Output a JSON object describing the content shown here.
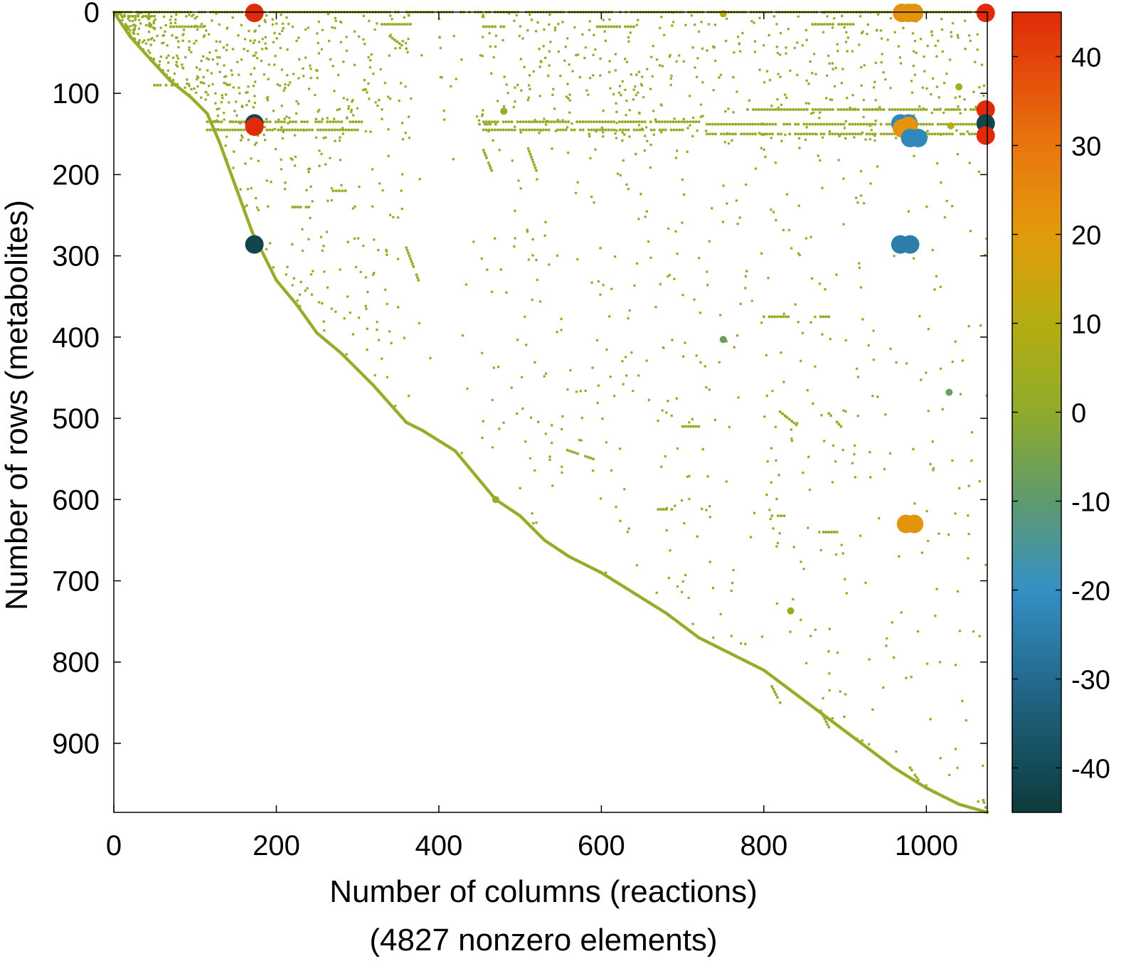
{
  "chart_data": {
    "type": "scatter",
    "title": "",
    "xlabel": "Number of columns (reactions)",
    "xlabel_line2": "(4827 nonzero elements)",
    "ylabel": "Number of rows (metabolites)",
    "xlim": [
      0,
      1075
    ],
    "ylim": [
      985,
      0
    ],
    "x_inverted": false,
    "y_inverted": true,
    "grid": false,
    "xticks": [
      0,
      200,
      400,
      600,
      800,
      1000
    ],
    "yticks": [
      0,
      100,
      200,
      300,
      400,
      500,
      600,
      700,
      800,
      900
    ],
    "colorbar": {
      "range": [
        -45,
        45
      ],
      "ticks": [
        40,
        30,
        20,
        10,
        0,
        -10,
        -20,
        -30,
        -40
      ],
      "stops": [
        {
          "value": -45,
          "color": "#0d3b3b"
        },
        {
          "value": -30,
          "color": "#236a8e"
        },
        {
          "value": -20,
          "color": "#3590c6"
        },
        {
          "value": -10,
          "color": "#5f9a6e"
        },
        {
          "value": 0,
          "color": "#8fab2b"
        },
        {
          "value": 10,
          "color": "#b4ad12"
        },
        {
          "value": 20,
          "color": "#e29b0a"
        },
        {
          "value": 30,
          "color": "#e8760e"
        },
        {
          "value": 45,
          "color": "#e02a08"
        }
      ]
    },
    "nonzero_count": 4827,
    "marker_color_default": "#98ac2a",
    "diagonal_points": [
      [
        0,
        0
      ],
      [
        20,
        30
      ],
      [
        45,
        58
      ],
      [
        70,
        85
      ],
      [
        95,
        105
      ],
      [
        115,
        125
      ],
      [
        130,
        160
      ],
      [
        150,
        215
      ],
      [
        170,
        270
      ],
      [
        185,
        300
      ],
      [
        200,
        330
      ],
      [
        225,
        360
      ],
      [
        250,
        395
      ],
      [
        280,
        420
      ],
      [
        320,
        460
      ],
      [
        360,
        505
      ],
      [
        380,
        515
      ],
      [
        420,
        540
      ],
      [
        470,
        600
      ],
      [
        500,
        620
      ],
      [
        530,
        650
      ],
      [
        560,
        670
      ],
      [
        600,
        690
      ],
      [
        640,
        715
      ],
      [
        680,
        740
      ],
      [
        720,
        770
      ],
      [
        760,
        790
      ],
      [
        800,
        810
      ],
      [
        840,
        840
      ],
      [
        880,
        870
      ],
      [
        920,
        900
      ],
      [
        960,
        930
      ],
      [
        1000,
        955
      ],
      [
        1040,
        975
      ],
      [
        1075,
        985
      ]
    ],
    "segments": [
      {
        "x": [
          0,
          1075
        ],
        "y": [
          0,
          0
        ]
      },
      {
        "x": [
          20,
          50
        ],
        "y": [
          5,
          5
        ]
      },
      {
        "x": [
          70,
          110
        ],
        "y": [
          18,
          18
        ]
      },
      {
        "x": [
          330,
          365
        ],
        "y": [
          15,
          15
        ]
      },
      {
        "x": [
          455,
          480
        ],
        "y": [
          18,
          18
        ]
      },
      {
        "x": [
          595,
          640
        ],
        "y": [
          18,
          18
        ]
      },
      {
        "x": [
          860,
          910
        ],
        "y": [
          15,
          15
        ]
      },
      {
        "x": [
          50,
          75
        ],
        "y": [
          90,
          90
        ]
      },
      {
        "x": [
          115,
          305
        ],
        "y": [
          135,
          135
        ]
      },
      {
        "x": [
          115,
          300
        ],
        "y": [
          145,
          145
        ]
      },
      {
        "x": [
          455,
          720
        ],
        "y": [
          135,
          135
        ]
      },
      {
        "x": [
          450,
          470
        ],
        "y": [
          138,
          138
        ]
      },
      {
        "x": [
          455,
          700
        ],
        "y": [
          145,
          145
        ]
      },
      {
        "x": [
          780,
          1000
        ],
        "y": [
          120,
          120
        ]
      },
      {
        "x": [
          730,
          1060
        ],
        "y": [
          138,
          138
        ]
      },
      {
        "x": [
          730,
          1060
        ],
        "y": [
          150,
          150
        ]
      },
      {
        "x": [
          220,
          240
        ],
        "y": [
          240,
          240
        ]
      },
      {
        "x": [
          270,
          285
        ],
        "y": [
          220,
          220
        ]
      },
      {
        "x": [
          1010,
          1065
        ],
        "y": [
          120,
          120
        ]
      },
      {
        "x": [
          800,
          830
        ],
        "y": [
          375,
          375
        ]
      },
      {
        "x": [
          870,
          880
        ],
        "y": [
          375,
          375
        ]
      },
      {
        "x": [
          810,
          825
        ],
        "y": [
          620,
          620
        ]
      },
      {
        "x": [
          870,
          890
        ],
        "y": [
          640,
          640
        ]
      },
      {
        "x": [
          670,
          690
        ],
        "y": [
          612,
          612
        ]
      },
      {
        "x": [
          700,
          720
        ],
        "y": [
          510,
          510
        ]
      },
      {
        "x": [
          555,
          590
        ],
        "y": [
          538,
          550
        ]
      },
      {
        "x": [
          820,
          840
        ],
        "y": [
          492,
          508
        ]
      },
      {
        "x": [
          880,
          895
        ],
        "y": [
          494,
          510
        ]
      },
      {
        "x": [
          360,
          375
        ],
        "y": [
          290,
          330
        ]
      },
      {
        "x": [
          510,
          520
        ],
        "y": [
          168,
          195
        ]
      },
      {
        "x": [
          455,
          465
        ],
        "y": [
          170,
          195
        ]
      },
      {
        "x": [
          340,
          360
        ],
        "y": [
          30,
          45
        ]
      },
      {
        "x": [
          810,
          820
        ],
        "y": [
          830,
          850
        ]
      },
      {
        "x": [
          870,
          880
        ],
        "y": [
          860,
          880
        ]
      },
      {
        "x": [
          980,
          990
        ],
        "y": [
          930,
          945
        ]
      },
      {
        "x": [
          1070,
          1075
        ],
        "y": [
          970,
          985
        ]
      }
    ],
    "big_markers": [
      {
        "x": 173,
        "y": 1,
        "value": 45
      },
      {
        "x": 173,
        "y": 137,
        "value": -42
      },
      {
        "x": 173,
        "y": 141,
        "value": 45
      },
      {
        "x": 173,
        "y": 286,
        "value": -42
      },
      {
        "x": 970,
        "y": 1,
        "value": 22
      },
      {
        "x": 978,
        "y": 1,
        "value": 22
      },
      {
        "x": 985,
        "y": 1,
        "value": 22
      },
      {
        "x": 1073,
        "y": 1,
        "value": 45
      },
      {
        "x": 968,
        "y": 137,
        "value": -22
      },
      {
        "x": 978,
        "y": 137,
        "value": -22
      },
      {
        "x": 970,
        "y": 143,
        "value": 22
      },
      {
        "x": 978,
        "y": 140,
        "value": 22
      },
      {
        "x": 980,
        "y": 155,
        "value": -22
      },
      {
        "x": 990,
        "y": 155,
        "value": -22
      },
      {
        "x": 968,
        "y": 286,
        "value": -25
      },
      {
        "x": 980,
        "y": 286,
        "value": -25
      },
      {
        "x": 975,
        "y": 630,
        "value": 22
      },
      {
        "x": 985,
        "y": 630,
        "value": 22
      },
      {
        "x": 1073,
        "y": 120,
        "value": 45
      },
      {
        "x": 1073,
        "y": 137,
        "value": -42
      },
      {
        "x": 1073,
        "y": 152,
        "value": 45
      }
    ],
    "medium_markers": [
      {
        "x": 750,
        "y": 403,
        "value": -8
      },
      {
        "x": 1028,
        "y": 468,
        "value": -8
      },
      {
        "x": 1030,
        "y": 140,
        "value": 10
      },
      {
        "x": 1040,
        "y": 92,
        "value": 5
      },
      {
        "x": 750,
        "y": 2,
        "value": 10
      },
      {
        "x": 480,
        "y": 122,
        "value": 3
      },
      {
        "x": 833,
        "y": 737,
        "value": 3
      },
      {
        "x": 470,
        "y": 600,
        "value": 3
      }
    ],
    "scatter_seed": 4827
  }
}
